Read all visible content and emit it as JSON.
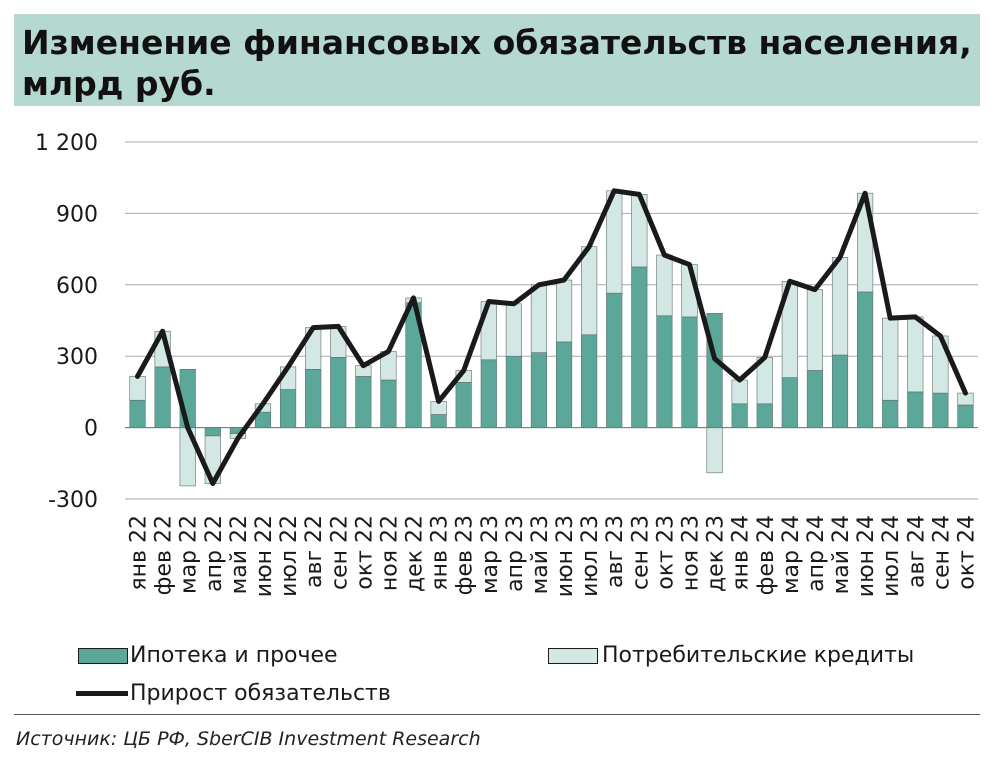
{
  "title": "Изменение финансовых обязательств населения, млрд руб.",
  "source": "Источник: ЦБ РФ, SberCIB Investment Research",
  "colors": {
    "mortgage": "#5ba79a",
    "consumer": "#d3e8e4",
    "line": "#1a1a1a",
    "grid": "#aaaaaa",
    "title_bg": "#b5d8d1"
  },
  "legend": {
    "mortgage": "Ипотека и прочее",
    "consumer": "Потребительские кредиты",
    "total": "Прирост обязательств"
  },
  "chart_data": {
    "type": "bar",
    "stacked": true,
    "ylim": [
      -300,
      1200
    ],
    "yticks": [
      -300,
      0,
      300,
      600,
      900,
      1200
    ],
    "ytick_labels": [
      "-300",
      "0",
      "300",
      "600",
      "900",
      "1 200"
    ],
    "grid": true,
    "categories": [
      "янв 22",
      "фев 22",
      "мар 22",
      "апр 22",
      "май 22",
      "июн 22",
      "июл 22",
      "авг 22",
      "сен 22",
      "окт 22",
      "ноя 22",
      "дек 22",
      "янв 23",
      "фев 23",
      "мар 23",
      "апр 23",
      "май 23",
      "июн 23",
      "июл 23",
      "авг 23",
      "сен 23",
      "окт 23",
      "ноя 23",
      "дек 23",
      "янв 24",
      "фев 24",
      "мар 24",
      "апр 24",
      "май 24",
      "июн 24",
      "июл 24",
      "авг 24",
      "сен 24",
      "окт 24"
    ],
    "series": [
      {
        "name": "Ипотека и прочее",
        "kind": "bar",
        "values": [
          115,
          255,
          245,
          -35,
          -25,
          65,
          160,
          245,
          295,
          215,
          200,
          525,
          55,
          190,
          285,
          300,
          315,
          360,
          390,
          565,
          675,
          470,
          465,
          480,
          100,
          100,
          210,
          240,
          305,
          570,
          115,
          150,
          145,
          95
        ]
      },
      {
        "name": "Потребительские кредиты",
        "kind": "bar",
        "values": [
          100,
          150,
          -245,
          -200,
          -20,
          35,
          95,
          175,
          130,
          45,
          120,
          20,
          55,
          50,
          245,
          220,
          285,
          260,
          370,
          430,
          305,
          255,
          220,
          -190,
          100,
          195,
          405,
          340,
          410,
          415,
          345,
          315,
          240,
          50
        ]
      },
      {
        "name": "Прирост обязательств",
        "kind": "line",
        "values": [
          215,
          405,
          0,
          -235,
          -45,
          100,
          255,
          420,
          425,
          260,
          320,
          545,
          110,
          240,
          530,
          520,
          600,
          620,
          760,
          995,
          980,
          725,
          685,
          290,
          200,
          295,
          615,
          580,
          715,
          985,
          460,
          465,
          385,
          145
        ]
      }
    ]
  }
}
